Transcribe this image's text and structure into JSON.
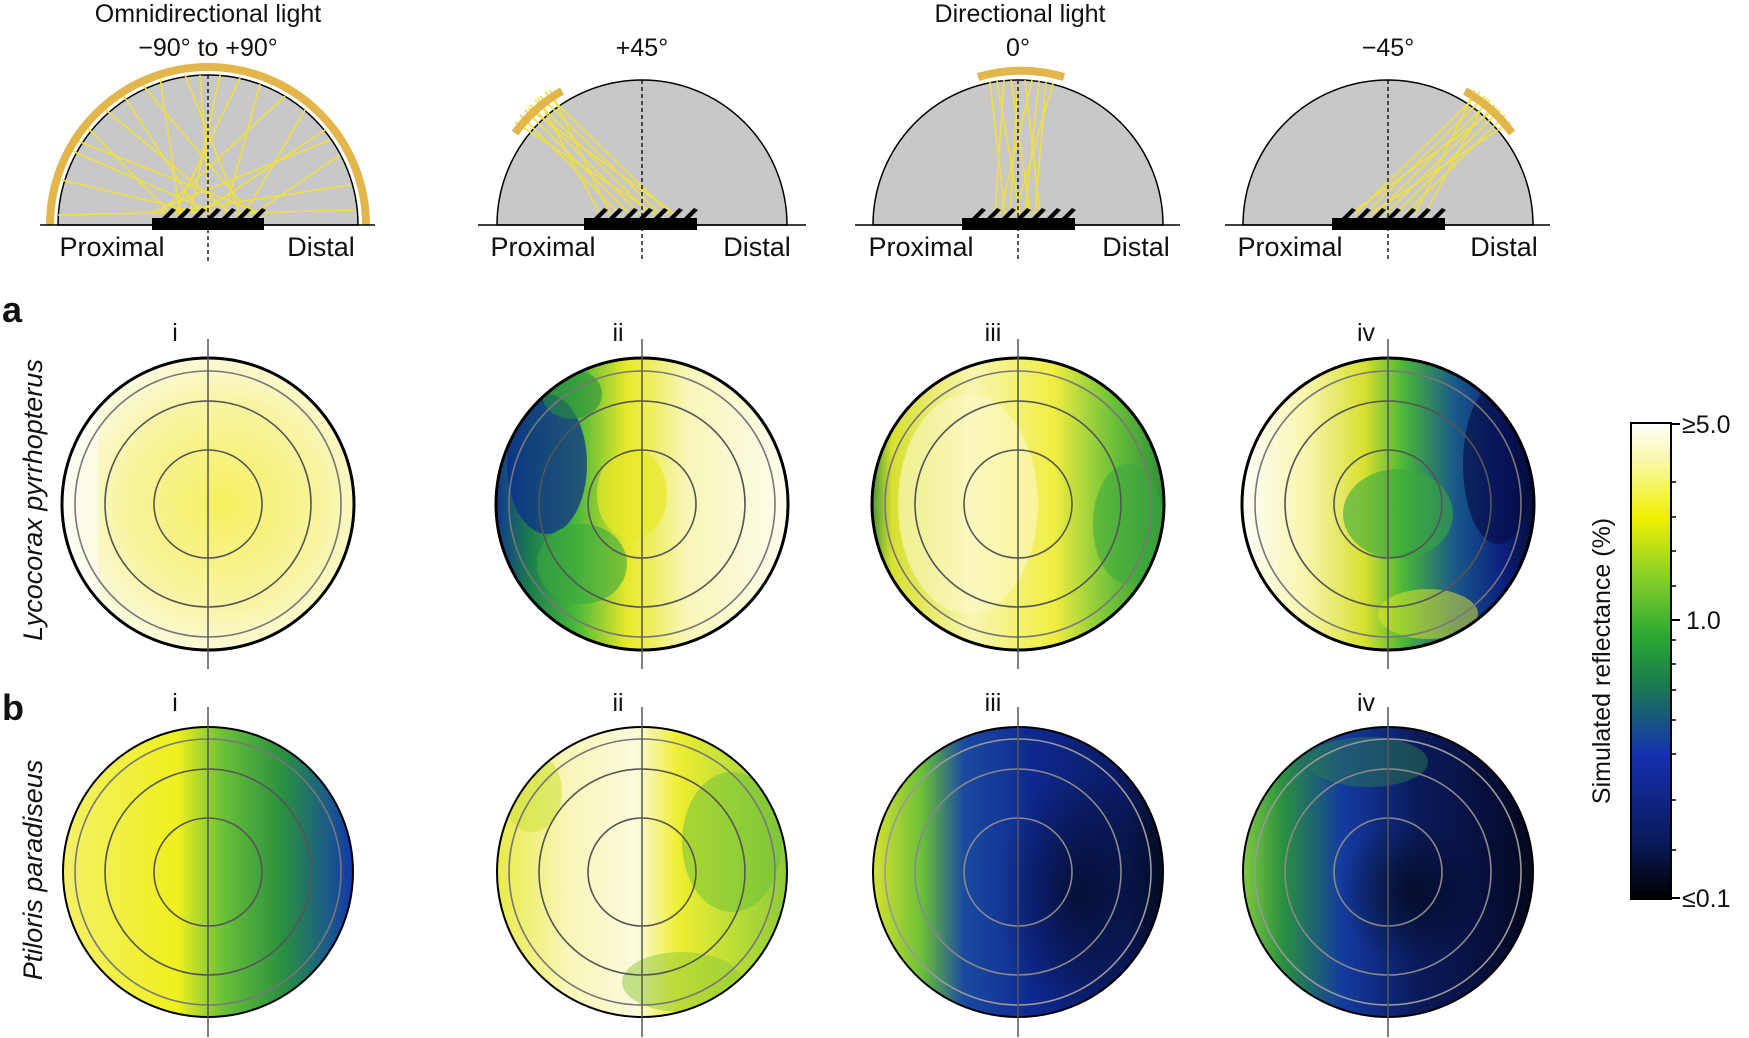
{
  "header": {
    "omni_title": "Omnidirectional light",
    "omni_range": "−90° to +90°",
    "directional_title": "Directional light",
    "angle_plus45": "+45°",
    "angle_0": "0°",
    "angle_minus45": "−45°",
    "proximal": "Proximal",
    "distal": "Distal"
  },
  "panels": {
    "a": {
      "label": "a",
      "species": "Lycocorax pyrrhopterus",
      "subpanels": [
        "i",
        "ii",
        "iii",
        "iv"
      ]
    },
    "b": {
      "label": "b",
      "species": "Ptiloris paradiseus",
      "subpanels": [
        "i",
        "ii",
        "iii",
        "iv"
      ]
    }
  },
  "colorbar": {
    "label": "Simulated reflectance (%)",
    "tick_max": "≥5.0",
    "tick_mid": "1.0",
    "tick_min": "≤0.1",
    "min_value": 0.1,
    "mid_value": 1.0,
    "max_value": 5.0,
    "scale": "log",
    "colors": [
      "#000000",
      "#0a1a5a",
      "#1430b0",
      "#1a7a50",
      "#2aa832",
      "#8ad02a",
      "#f0f000",
      "#f8f8a8",
      "#ffffff"
    ]
  },
  "colors": {
    "hemisphere_fill": "#c8c8c8",
    "light_arc": "#e2b64a",
    "rays": "#f0e040",
    "feather": "#000000"
  }
}
